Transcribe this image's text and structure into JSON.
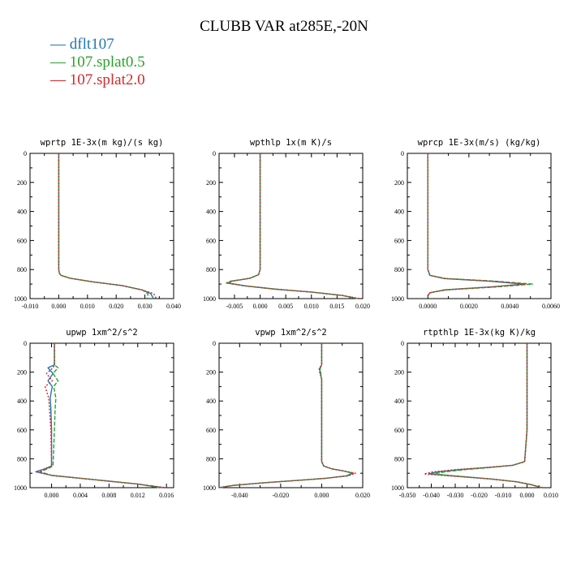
{
  "title": "CLUBB VAR at285E,-20N",
  "legend": [
    {
      "label": "dflt107",
      "color": "#1f77b4"
    },
    {
      "label": "107.splat0.5",
      "color": "#2ca02c"
    },
    {
      "label": "107.splat2.0",
      "color": "#d62728"
    }
  ],
  "chart_data": [
    {
      "type": "line",
      "title": "wprtp  1E-3x(m kg)/(s kg)",
      "xlim": [
        -0.01,
        0.04
      ],
      "xticks": [
        -0.01,
        0.0,
        0.01,
        0.02,
        0.03,
        0.04
      ],
      "xtick_labels": [
        "-0.010",
        "0.000",
        "0.010",
        "0.020",
        "0.030",
        "0.040"
      ],
      "ylim": [
        1000,
        0
      ],
      "yticks": [
        0,
        200,
        400,
        600,
        800,
        1000
      ],
      "ytick_labels": [
        "0",
        "200",
        "400",
        "600",
        "800",
        "1000"
      ],
      "series": [
        {
          "color": "#1f77b4",
          "x": [
            0,
            0,
            0,
            0,
            0.0002,
            0.0008,
            0.004,
            0.012,
            0.022,
            0.029,
            0.032,
            0.033
          ],
          "y": [
            0,
            300,
            600,
            800,
            825,
            840,
            860,
            885,
            910,
            940,
            965,
            1000
          ]
        },
        {
          "color": "#2ca02c",
          "x": [
            0,
            0,
            0,
            0,
            0.0002,
            0.0008,
            0.004,
            0.012,
            0.022,
            0.029,
            0.031,
            0.031
          ],
          "y": [
            0,
            300,
            600,
            800,
            825,
            840,
            860,
            885,
            910,
            940,
            965,
            1000
          ]
        },
        {
          "color": "#d62728",
          "x": [
            0,
            0,
            0,
            0,
            0.0002,
            0.0008,
            0.004,
            0.012,
            0.022,
            0.029,
            0.033,
            0.034
          ],
          "y": [
            0,
            300,
            600,
            800,
            825,
            840,
            860,
            885,
            910,
            940,
            965,
            1000
          ]
        }
      ]
    },
    {
      "type": "line",
      "title": "wpthlp  1x(m K)/s",
      "xlim": [
        -0.008,
        0.02
      ],
      "xticks": [
        -0.005,
        0.0,
        0.005,
        0.01,
        0.015,
        0.02
      ],
      "xtick_labels": [
        "-0.005",
        "0.000",
        "0.005",
        "0.010",
        "0.015",
        "0.020"
      ],
      "ylim": [
        1000,
        0
      ],
      "yticks": [
        0,
        200,
        400,
        600,
        800,
        1000
      ],
      "ytick_labels": [
        "0",
        "200",
        "400",
        "600",
        "800",
        "1000"
      ],
      "series": [
        {
          "color": "#1f77b4",
          "x": [
            0,
            0,
            0,
            0,
            -0.0003,
            -0.002,
            -0.0055,
            -0.0062,
            -0.003,
            0.003,
            0.01,
            0.016,
            0.019
          ],
          "y": [
            0,
            300,
            600,
            800,
            835,
            860,
            880,
            893,
            912,
            935,
            955,
            978,
            1000
          ]
        },
        {
          "color": "#2ca02c",
          "x": [
            0,
            0,
            0,
            0,
            -0.0003,
            -0.002,
            -0.0058,
            -0.0066,
            -0.003,
            0.003,
            0.01,
            0.016,
            0.019
          ],
          "y": [
            0,
            300,
            600,
            800,
            835,
            860,
            880,
            893,
            912,
            935,
            955,
            978,
            1000
          ]
        },
        {
          "color": "#d62728",
          "x": [
            0,
            0,
            0,
            0,
            -0.0003,
            -0.002,
            -0.0056,
            -0.0064,
            -0.003,
            0.003,
            0.01,
            0.016,
            0.0195
          ],
          "y": [
            0,
            300,
            600,
            800,
            835,
            860,
            880,
            893,
            912,
            935,
            955,
            978,
            1000
          ]
        }
      ]
    },
    {
      "type": "line",
      "title": "wprcp  1E-3x(m/s) (kg/kg)",
      "xlim": [
        -0.001,
        0.006
      ],
      "xticks": [
        0.0,
        0.002,
        0.004,
        0.006
      ],
      "xtick_labels": [
        "0.0000",
        "0.0020",
        "0.0040",
        "0.0060"
      ],
      "ylim": [
        1000,
        0
      ],
      "yticks": [
        0,
        200,
        400,
        600,
        800,
        1000
      ],
      "ytick_labels": [
        "0",
        "200",
        "400",
        "600",
        "800",
        "1000"
      ],
      "series": [
        {
          "color": "#1f77b4",
          "x": [
            0,
            0,
            0,
            0,
            0.0001,
            0.0008,
            0.003,
            0.0047,
            0.003,
            0.0008,
            0.0001,
            0
          ],
          "y": [
            0,
            300,
            600,
            800,
            840,
            862,
            880,
            900,
            920,
            940,
            960,
            980
          ]
        },
        {
          "color": "#2ca02c",
          "x": [
            0,
            0,
            0,
            0,
            0.0001,
            0.0009,
            0.0033,
            0.0051,
            0.0033,
            0.0009,
            0.0001,
            0
          ],
          "y": [
            0,
            300,
            600,
            800,
            840,
            862,
            880,
            900,
            920,
            940,
            960,
            980
          ]
        },
        {
          "color": "#d62728",
          "x": [
            0,
            0,
            0,
            0,
            0.0001,
            0.0008,
            0.0031,
            0.0048,
            0.0031,
            0.0008,
            0.0001,
            0
          ],
          "y": [
            0,
            300,
            600,
            800,
            840,
            862,
            880,
            900,
            920,
            940,
            960,
            980
          ]
        }
      ]
    },
    {
      "type": "line",
      "title": "upwp  1xm^2/s^2",
      "xlim": [
        -0.003,
        0.017
      ],
      "xticks": [
        0.0,
        0.004,
        0.008,
        0.012,
        0.016
      ],
      "xtick_labels": [
        "0.000",
        "0.004",
        "0.008",
        "0.012",
        "0.016"
      ],
      "ylim": [
        1000,
        0
      ],
      "yticks": [
        0,
        200,
        400,
        600,
        800,
        1000
      ],
      "ytick_labels": [
        "0",
        "200",
        "400",
        "600",
        "800",
        "1000"
      ],
      "series": [
        {
          "color": "#1f77b4",
          "x": [
            0.0004,
            0.0004,
            -0.0005,
            0.0002,
            -0.0005,
            0.0001,
            -0.0002,
            -0.0001,
            0,
            0,
            -0.001,
            -0.0022,
            0.0,
            0.006,
            0.012,
            0.0155
          ],
          "y": [
            0,
            150,
            170,
            210,
            260,
            300,
            380,
            450,
            600,
            850,
            870,
            890,
            915,
            945,
            975,
            1000
          ]
        },
        {
          "color": "#2ca02c",
          "x": [
            0.0004,
            0.0004,
            0.0009,
            0.0002,
            0.0009,
            0.0003,
            0.0006,
            0.0005,
            0.0004,
            0.0002,
            -0.0006,
            -0.0016,
            0.0,
            0.006,
            0.012,
            0.015
          ],
          "y": [
            0,
            150,
            170,
            210,
            260,
            300,
            380,
            450,
            600,
            850,
            870,
            890,
            915,
            945,
            975,
            1000
          ]
        },
        {
          "color": "#d62728",
          "x": [
            0.0004,
            0.0004,
            0.0002,
            -0.0007,
            0.0001,
            -0.0009,
            -0.0004,
            -0.0003,
            -0.0001,
            0.0,
            -0.0008,
            -0.0019,
            0.0,
            0.006,
            0.012,
            0.016
          ],
          "y": [
            0,
            150,
            170,
            210,
            260,
            300,
            380,
            450,
            600,
            850,
            870,
            890,
            915,
            945,
            975,
            1000
          ]
        }
      ]
    },
    {
      "type": "line",
      "title": "vpwp  1xm^2/s^2",
      "xlim": [
        -0.05,
        0.02
      ],
      "xticks": [
        -0.04,
        -0.02,
        0.0,
        0.02
      ],
      "xtick_labels": [
        "-0.040",
        "-0.020",
        "0.000",
        "0.020"
      ],
      "ylim": [
        1000,
        0
      ],
      "yticks": [
        0,
        200,
        400,
        600,
        800,
        1000
      ],
      "ytick_labels": [
        "0",
        "200",
        "400",
        "600",
        "800",
        "1000"
      ],
      "series": [
        {
          "color": "#1f77b4",
          "x": [
            0,
            0,
            -0.001,
            -0.0008,
            0,
            0,
            0.001,
            0.005,
            0.011,
            0.015,
            0.012,
            0.002,
            -0.012,
            -0.028,
            -0.043,
            -0.05
          ],
          "y": [
            0,
            150,
            175,
            200,
            250,
            820,
            850,
            870,
            885,
            900,
            918,
            935,
            950,
            966,
            984,
            1000
          ]
        },
        {
          "color": "#2ca02c",
          "x": [
            0,
            0,
            -0.0007,
            -0.0005,
            0,
            0,
            0.001,
            0.005,
            0.011,
            0.0155,
            0.0125,
            0.002,
            -0.012,
            -0.028,
            -0.043,
            -0.05
          ],
          "y": [
            0,
            150,
            175,
            200,
            250,
            820,
            850,
            870,
            885,
            900,
            918,
            935,
            950,
            966,
            984,
            1000
          ]
        },
        {
          "color": "#d62728",
          "x": [
            0,
            0,
            -0.0012,
            -0.001,
            0,
            0,
            0.001,
            0.005,
            0.011,
            0.0165,
            0.013,
            0.002,
            -0.012,
            -0.028,
            -0.043,
            -0.05
          ],
          "y": [
            0,
            150,
            175,
            200,
            250,
            820,
            850,
            870,
            885,
            900,
            918,
            935,
            950,
            966,
            984,
            1000
          ]
        }
      ]
    },
    {
      "type": "line",
      "title": "rtpthlp  1E-3x(kg K)/kg",
      "xlim": [
        -0.05,
        0.01
      ],
      "xticks": [
        -0.05,
        -0.04,
        -0.03,
        -0.02,
        -0.01,
        0.0,
        0.01
      ],
      "xtick_labels": [
        "-0.050",
        "-0.040",
        "-0.030",
        "-0.020",
        "-0.010",
        "0.000",
        "0.010"
      ],
      "ylim": [
        1000,
        0
      ],
      "yticks": [
        0,
        200,
        400,
        600,
        800,
        1000
      ],
      "ytick_labels": [
        "0",
        "200",
        "400",
        "600",
        "800",
        "1000"
      ],
      "series": [
        {
          "color": "#1f77b4",
          "x": [
            0,
            0,
            0,
            -0.001,
            -0.006,
            -0.016,
            -0.028,
            -0.038,
            -0.041,
            -0.03,
            -0.015,
            -0.004,
            0.002,
            0.006
          ],
          "y": [
            0,
            300,
            600,
            820,
            845,
            860,
            875,
            892,
            905,
            920,
            940,
            960,
            980,
            1000
          ]
        },
        {
          "color": "#2ca02c",
          "x": [
            0,
            0,
            0,
            -0.001,
            -0.006,
            -0.015,
            -0.026,
            -0.035,
            -0.039,
            -0.029,
            -0.015,
            -0.004,
            0.002,
            0.006
          ],
          "y": [
            0,
            300,
            600,
            820,
            845,
            860,
            875,
            892,
            905,
            920,
            940,
            960,
            980,
            1000
          ]
        },
        {
          "color": "#d62728",
          "x": [
            0,
            0,
            0,
            -0.001,
            -0.006,
            -0.017,
            -0.03,
            -0.04,
            -0.043,
            -0.031,
            -0.015,
            -0.004,
            0.002,
            0.0065
          ],
          "y": [
            0,
            300,
            600,
            820,
            845,
            860,
            875,
            892,
            905,
            920,
            940,
            960,
            980,
            1000
          ]
        }
      ]
    }
  ]
}
